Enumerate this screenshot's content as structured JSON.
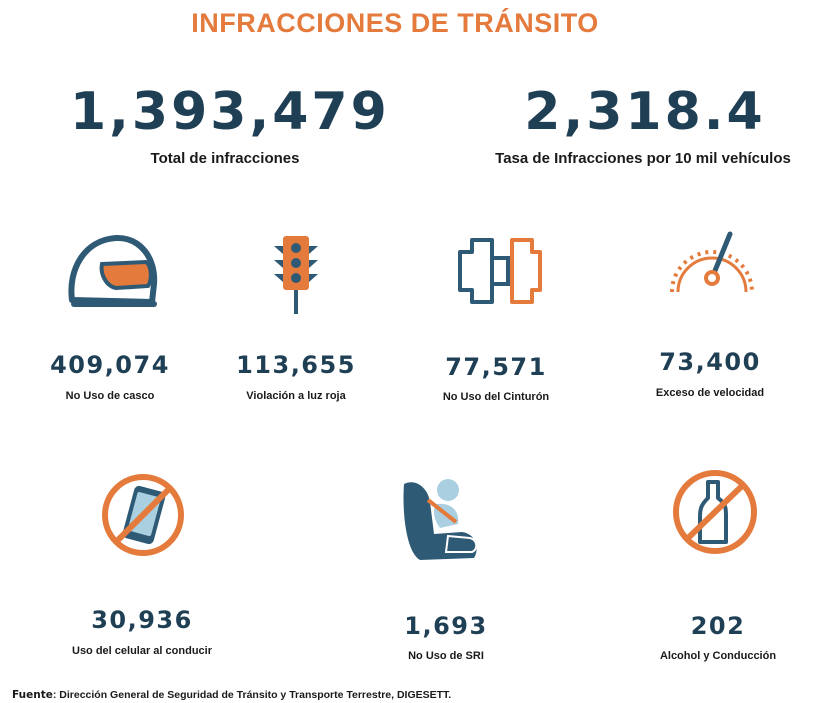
{
  "title": "INFRACCIONES DE TRÁNSITO",
  "totals": [
    {
      "value": "1,393,479",
      "label": "Total de infracciones"
    },
    {
      "value": "2,318.4",
      "label": "Tasa de Infracciones por 10 mil vehículos"
    }
  ],
  "items": [
    {
      "value": "409,074",
      "label": "No Uso de casco",
      "icon": "helmet-icon"
    },
    {
      "value": "113,655",
      "label": "Violación a luz roja",
      "icon": "traffic-light-icon"
    },
    {
      "value": "77,571",
      "label": "No Uso del Cinturón",
      "icon": "seatbelt-buckle-icon"
    },
    {
      "value": "73,400",
      "label": "Exceso de velocidad",
      "icon": "speedometer-icon"
    },
    {
      "value": "30,936",
      "label": "Uso del celular al conducir",
      "icon": "no-phone-icon"
    },
    {
      "value": "1,693",
      "label": "No Uso de SRI",
      "icon": "child-seat-icon"
    },
    {
      "value": "202",
      "label": "Alcohol y Conducción",
      "icon": "no-alcohol-icon"
    }
  ],
  "source": {
    "label": "Fuente",
    "text": ": Dirección General de Seguridad de Tránsito y Transporte Terrestre, DIGESETT."
  },
  "colors": {
    "accent": "#e47b3c",
    "navy": "#1f3f55",
    "icon_blue": "#2e5a76",
    "light_blue": "#a9cfe0"
  }
}
